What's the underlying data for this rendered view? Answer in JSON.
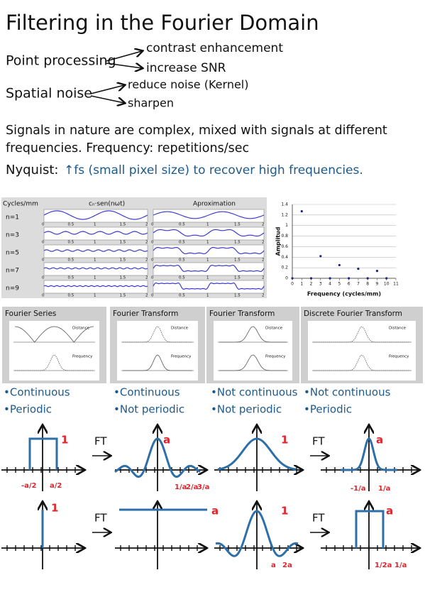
{
  "title": "Filtering in the Fourier Domain",
  "point_processing": {
    "label": "Point processing",
    "items": [
      "contrast enhancement",
      "increase SNR"
    ]
  },
  "spatial_noise": {
    "label": "Spatial noise",
    "items": [
      "reduce noise (Kernel)",
      "sharpen"
    ]
  },
  "paragraph": {
    "lines": [
      "Signals in nature are complex, mixed with signals at different",
      "frequencies. Frequency: repetitions/sec"
    ]
  },
  "nyquist": {
    "label": "Nyquist:",
    "text": "↑fs (small pixel size) to recover high frequencies."
  },
  "series_figure": {
    "headers": [
      "Cycles/mm",
      "cₙ·sen(nωt)",
      "Aproximation"
    ],
    "rows": [
      "n=1",
      "n=3",
      "n=5",
      "n=7",
      "n=9"
    ],
    "xtick_labels": [
      "0",
      "0.5",
      "1",
      "1.5",
      "2"
    ]
  },
  "amplitude_chart": {
    "type": "scatter",
    "y_label": "Amplitud",
    "x_label": "Frequency (cycles/mm)",
    "x": [
      0,
      1,
      2,
      3,
      4,
      5,
      6,
      7,
      8,
      9,
      10
    ],
    "values": [
      0,
      1.27,
      0,
      0.42,
      0,
      0.25,
      0,
      0.18,
      0,
      0.14,
      0
    ],
    "color": "#1a237e",
    "xlim": [
      0,
      11
    ],
    "ylim": [
      0,
      1.4
    ],
    "xticks": [
      0,
      1,
      2,
      3,
      4,
      5,
      6,
      7,
      8,
      9,
      10,
      11
    ],
    "yticks": [
      0,
      0.2,
      0.4,
      0.6,
      0.8,
      1,
      1.2,
      1.4
    ],
    "grid": true
  },
  "transform_panels": [
    {
      "title": "Fourier Series",
      "labels": [
        "Distance",
        "Frequency"
      ],
      "properties": [
        "•Continuous",
        "•Periodic"
      ]
    },
    {
      "title": "Fourier Transform",
      "labels": [
        "Distance",
        "Frequency"
      ],
      "properties": [
        "•Continuous",
        "•Not periodic"
      ]
    },
    {
      "title": "Fourier Transform",
      "labels": [
        "Distance",
        "Frequency"
      ],
      "properties": [
        "•Not continuous",
        "•Not periodic"
      ]
    },
    {
      "title": "Discrete Fourier Transform",
      "labels": [
        "Distance",
        "Frequency"
      ],
      "properties": [
        "•Not continuous",
        "•Periodic"
      ]
    }
  ],
  "sketches": {
    "operator": "FT",
    "row1": {
      "box": [
        "1",
        "-a/2",
        "a/2"
      ],
      "sinc": [
        "a",
        "1/a",
        "2/a",
        "3/a"
      ],
      "gaussian": [
        "1"
      ],
      "narrow_gaussian": [
        "a",
        "-1/a",
        "1/a"
      ]
    },
    "row2": {
      "impulse": [
        "1"
      ],
      "constant": [
        "a"
      ],
      "sinc": [
        "1",
        "a",
        "2a"
      ],
      "box": [
        "a",
        "1/2a",
        "1/a"
      ]
    }
  }
}
